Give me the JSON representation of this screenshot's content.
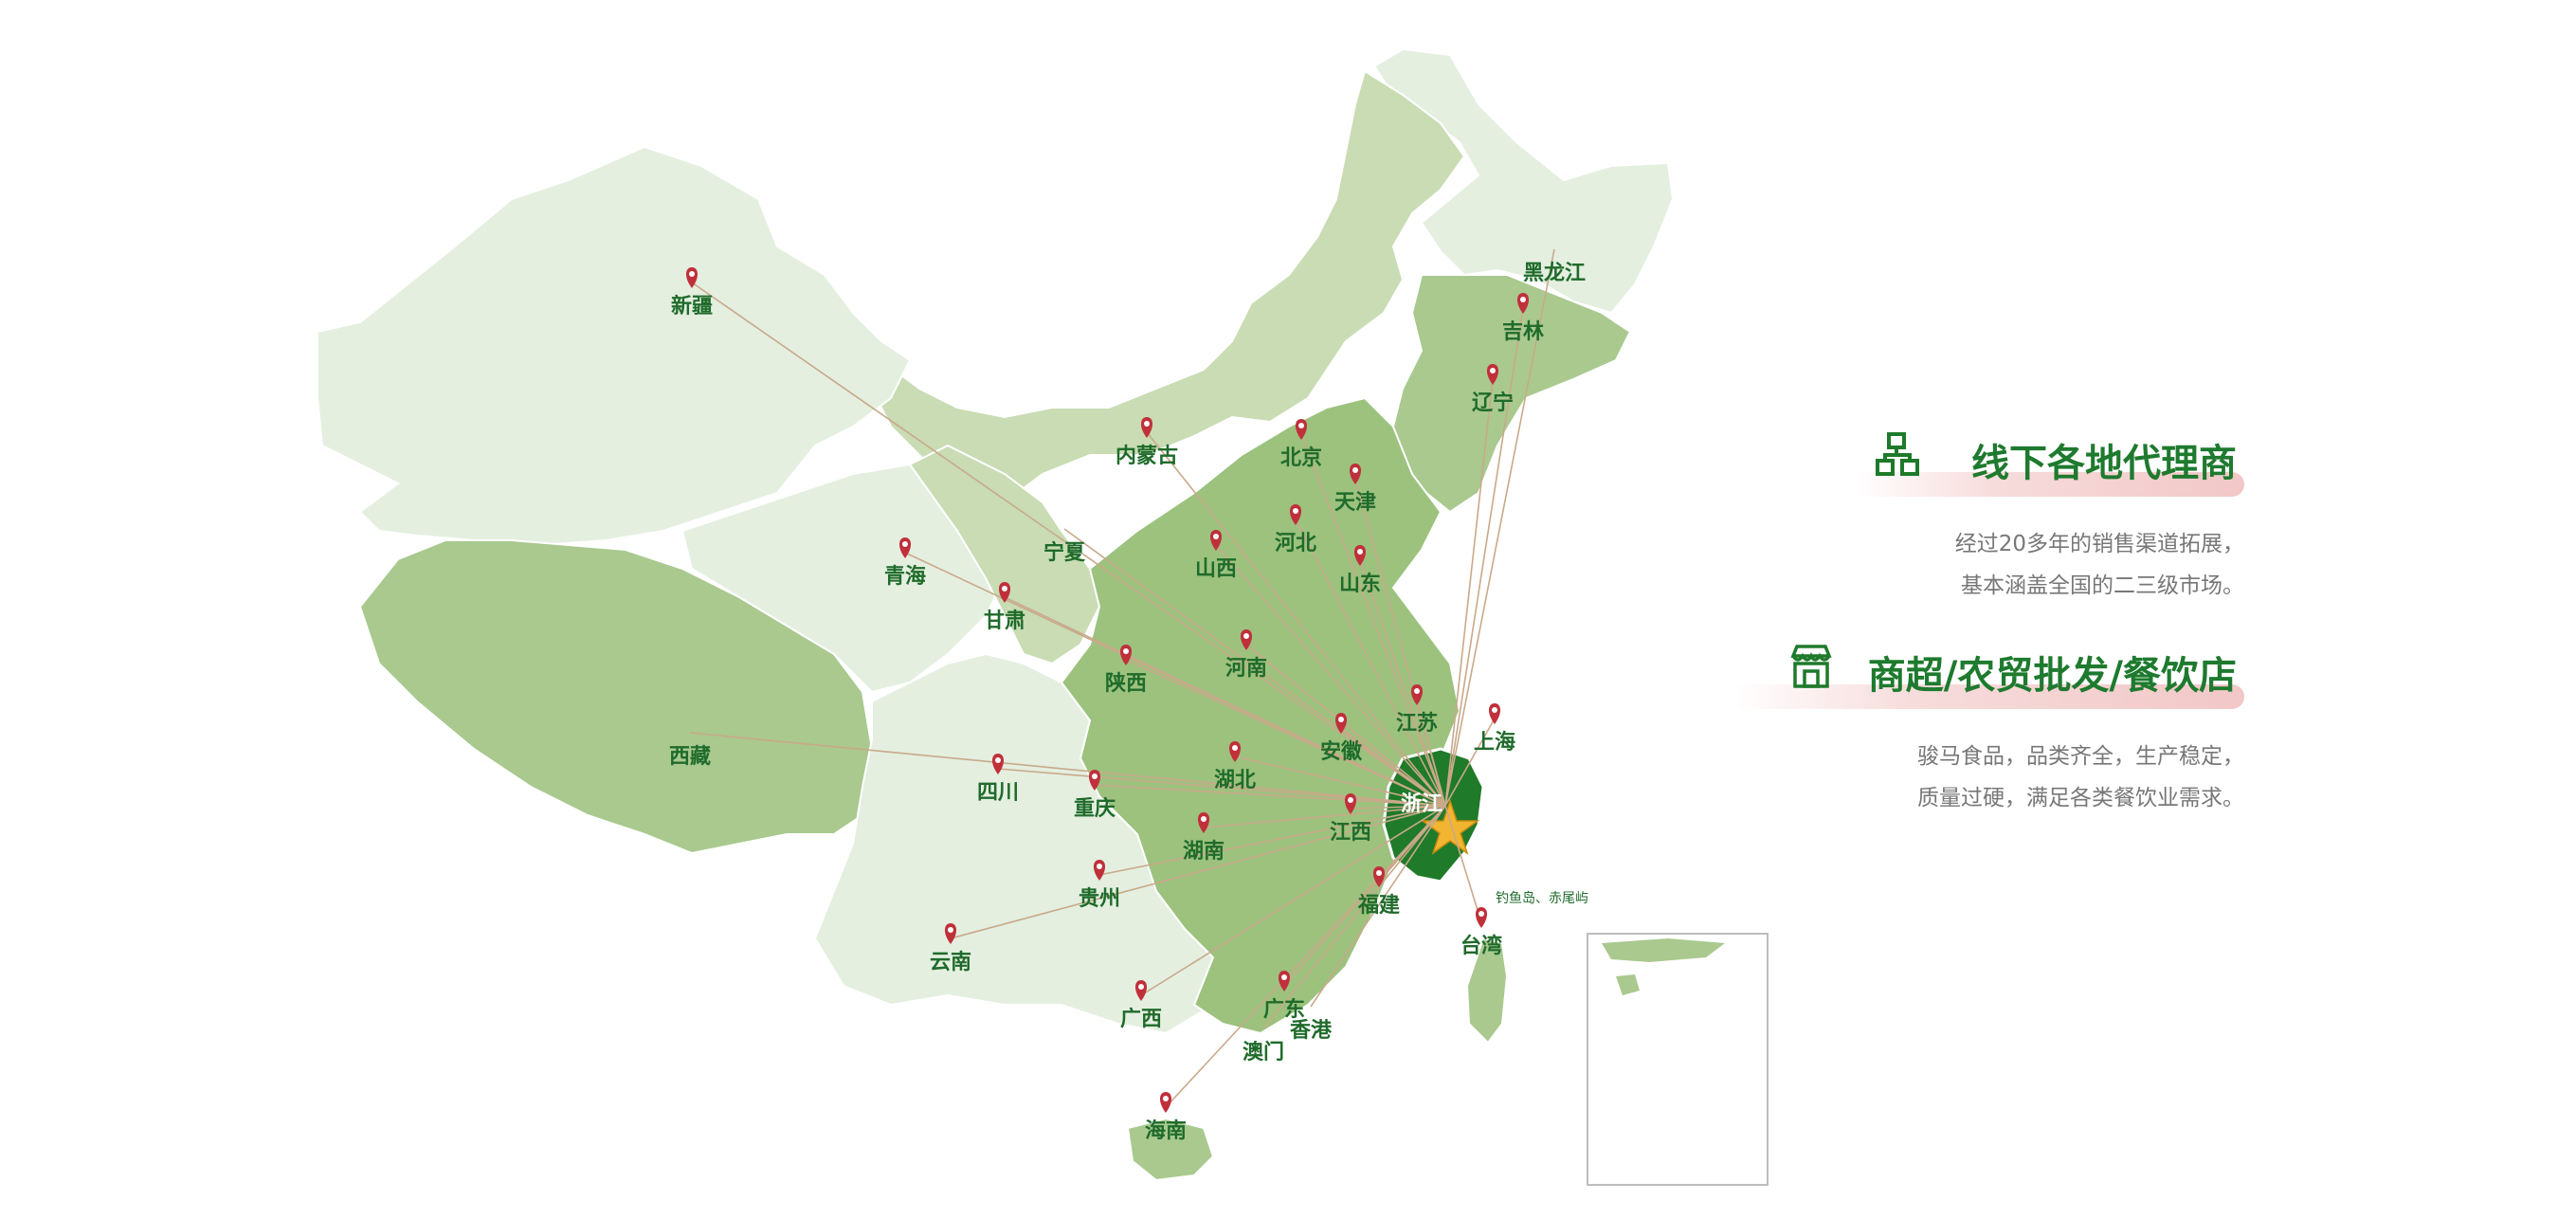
{
  "map": {
    "hub_label": "浙江",
    "provinces": [
      {
        "id": "xinjiang",
        "label": "新疆"
      },
      {
        "id": "xizang",
        "label": "西藏"
      },
      {
        "id": "qinghai",
        "label": "青海"
      },
      {
        "id": "gansu",
        "label": "甘肃"
      },
      {
        "id": "neimenggu",
        "label": "内蒙古"
      },
      {
        "id": "ningxia",
        "label": "宁夏"
      },
      {
        "id": "shaanxi",
        "label": "陕西"
      },
      {
        "id": "sichuan",
        "label": "四川"
      },
      {
        "id": "chongqing",
        "label": "重庆"
      },
      {
        "id": "yunnan",
        "label": "云南"
      },
      {
        "id": "guizhou",
        "label": "贵州"
      },
      {
        "id": "guangxi",
        "label": "广西"
      },
      {
        "id": "hainan",
        "label": "海南"
      },
      {
        "id": "guangdong",
        "label": "广东"
      },
      {
        "id": "xianggang",
        "label": "香港"
      },
      {
        "id": "aomen",
        "label": "澳门"
      },
      {
        "id": "hunan",
        "label": "湖南"
      },
      {
        "id": "hubei",
        "label": "湖北"
      },
      {
        "id": "jiangxi",
        "label": "江西"
      },
      {
        "id": "fujian",
        "label": "福建"
      },
      {
        "id": "taiwan",
        "label": "台湾"
      },
      {
        "id": "anhui",
        "label": "安徽"
      },
      {
        "id": "henan",
        "label": "河南"
      },
      {
        "id": "shanxi",
        "label": "山西"
      },
      {
        "id": "hebei",
        "label": "河北"
      },
      {
        "id": "beijing",
        "label": "北京"
      },
      {
        "id": "tianjin",
        "label": "天津"
      },
      {
        "id": "shandong",
        "label": "山东"
      },
      {
        "id": "jiangsu",
        "label": "江苏"
      },
      {
        "id": "shanghai",
        "label": "上海"
      },
      {
        "id": "liaoning",
        "label": "辽宁"
      },
      {
        "id": "jilin",
        "label": "吉林"
      },
      {
        "id": "heilongjiang",
        "label": "黑龙江"
      }
    ],
    "islands_label": "钓鱼岛、赤尾屿",
    "colors": {
      "lightest": "#e4efe0",
      "light": "#c9dcb4",
      "medium": "#a9c98f",
      "dark": "#9cc27e",
      "hub": "#1f7a2a",
      "pin": "#c0303a",
      "route": "#c9a98a"
    }
  },
  "features": [
    {
      "icon": "network-nodes-icon",
      "title": "线下各地代理商",
      "lines": [
        "经过20多年的销售渠道拓展，",
        "基本涵盖全国的二三级市场。"
      ]
    },
    {
      "icon": "storefront-icon",
      "title": "商超/农贸批发/餐饮店",
      "lines": [
        "骏马食品，品类齐全，生产稳定，",
        "质量过硬，满足各类餐饮业需求。"
      ]
    }
  ]
}
